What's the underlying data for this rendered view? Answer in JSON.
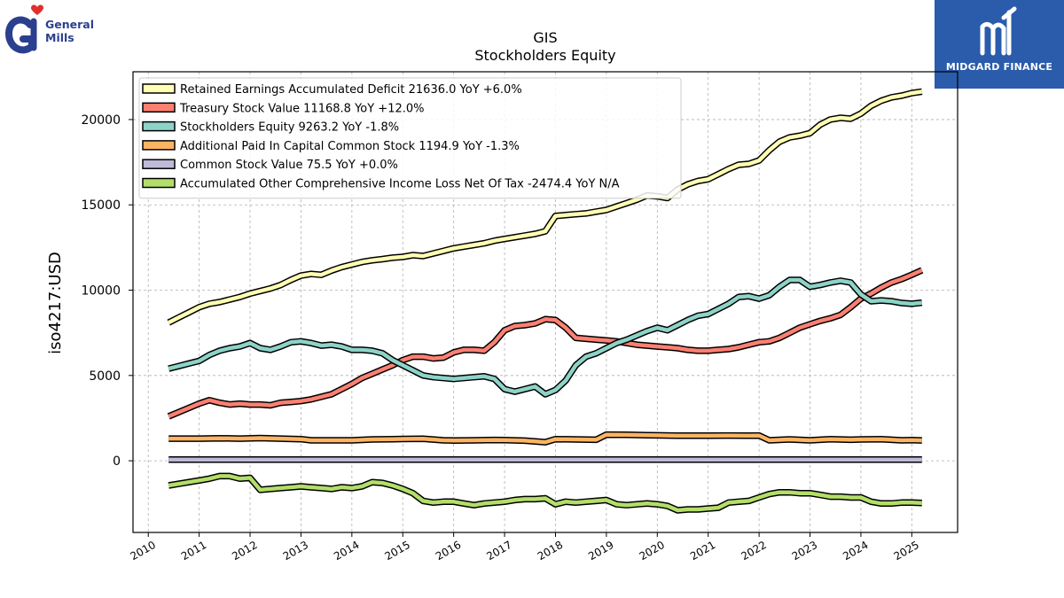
{
  "logos": {
    "company_line1": "General",
    "company_line2": "Mills",
    "partner": "MIDGARD FINANCE"
  },
  "chart_data": {
    "type": "line",
    "title": "GIS",
    "subtitle": "Stockholders  Equity",
    "xlabel": "",
    "ylabel": "iso4217:USD",
    "xlim": [
      2009.7,
      2025.9
    ],
    "ylim": [
      -4200,
      22800
    ],
    "grid": true,
    "legend_position": "top-left",
    "x_ticks": [
      "2010",
      "2011",
      "2012",
      "2013",
      "2014",
      "2015",
      "2016",
      "2017",
      "2018",
      "2019",
      "2020",
      "2021",
      "2022",
      "2023",
      "2024",
      "2025"
    ],
    "y_ticks": [
      0,
      5000,
      10000,
      15000,
      20000
    ],
    "series": [
      {
        "name": "Retained Earnings Accumulated Deficit",
        "legend": "Retained Earnings Accumulated Deficit  21636.0 YoY +6.0%",
        "color": "#ffffb3",
        "x": [
          2010.4,
          2010.6,
          2010.8,
          2011.0,
          2011.2,
          2011.4,
          2011.6,
          2011.8,
          2012.0,
          2012.2,
          2012.4,
          2012.6,
          2012.8,
          2013.0,
          2013.2,
          2013.4,
          2013.6,
          2013.8,
          2014.0,
          2014.2,
          2014.4,
          2014.6,
          2014.8,
          2015.0,
          2015.2,
          2015.4,
          2015.6,
          2015.8,
          2016.0,
          2016.2,
          2016.4,
          2016.6,
          2016.8,
          2017.0,
          2017.2,
          2017.4,
          2017.6,
          2017.8,
          2018.0,
          2018.2,
          2018.4,
          2018.6,
          2018.8,
          2019.0,
          2019.2,
          2019.4,
          2019.6,
          2019.8,
          2020.0,
          2020.2,
          2020.4,
          2020.6,
          2020.8,
          2021.0,
          2021.2,
          2021.4,
          2021.6,
          2021.8,
          2022.0,
          2022.2,
          2022.4,
          2022.6,
          2022.8,
          2023.0,
          2023.2,
          2023.4,
          2023.6,
          2023.8,
          2024.0,
          2024.2,
          2024.4,
          2024.6,
          2024.8,
          2025.0,
          2025.2
        ],
        "y": [
          8100,
          8400,
          8700,
          9000,
          9200,
          9300,
          9450,
          9600,
          9800,
          9950,
          10100,
          10300,
          10600,
          10850,
          10950,
          10900,
          11150,
          11350,
          11500,
          11650,
          11750,
          11820,
          11900,
          11950,
          12050,
          12000,
          12150,
          12300,
          12450,
          12550,
          12650,
          12750,
          12900,
          13000,
          13100,
          13200,
          13300,
          13450,
          14350,
          14400,
          14450,
          14500,
          14600,
          14700,
          14900,
          15100,
          15300,
          15550,
          15500,
          15400,
          15900,
          16200,
          16400,
          16500,
          16800,
          17100,
          17350,
          17400,
          17600,
          18200,
          18700,
          18950,
          19050,
          19200,
          19700,
          20000,
          20100,
          20050,
          20350,
          20800,
          21100,
          21300,
          21400,
          21550,
          21636
        ]
      },
      {
        "name": "Treasury Stock Value",
        "legend": "Treasury Stock Value  11168.8 YoY +12.0%",
        "color": "#fb8072",
        "x": [
          2010.4,
          2010.6,
          2010.8,
          2011.0,
          2011.2,
          2011.4,
          2011.6,
          2011.8,
          2012.0,
          2012.2,
          2012.4,
          2012.6,
          2012.8,
          2013.0,
          2013.2,
          2013.4,
          2013.6,
          2013.8,
          2014.0,
          2014.2,
          2014.4,
          2014.6,
          2014.8,
          2015.0,
          2015.2,
          2015.4,
          2015.6,
          2015.8,
          2016.0,
          2016.2,
          2016.4,
          2016.6,
          2016.8,
          2017.0,
          2017.2,
          2017.4,
          2017.6,
          2017.8,
          2018.0,
          2018.2,
          2018.4,
          2018.6,
          2018.8,
          2019.0,
          2019.2,
          2019.4,
          2019.6,
          2019.8,
          2020.0,
          2020.2,
          2020.4,
          2020.6,
          2020.8,
          2021.0,
          2021.2,
          2021.4,
          2021.6,
          2021.8,
          2022.0,
          2022.2,
          2022.4,
          2022.6,
          2022.8,
          2023.0,
          2023.2,
          2023.4,
          2023.6,
          2023.8,
          2024.0,
          2024.2,
          2024.4,
          2024.6,
          2024.8,
          2025.0,
          2025.2
        ],
        "y": [
          2600,
          2850,
          3100,
          3350,
          3550,
          3400,
          3300,
          3350,
          3300,
          3300,
          3250,
          3400,
          3450,
          3500,
          3600,
          3750,
          3900,
          4200,
          4500,
          4850,
          5100,
          5350,
          5600,
          5900,
          6100,
          6100,
          6000,
          6050,
          6350,
          6500,
          6500,
          6450,
          6950,
          7650,
          7900,
          7950,
          8050,
          8300,
          8250,
          7800,
          7200,
          7150,
          7100,
          7050,
          7000,
          6900,
          6800,
          6750,
          6700,
          6650,
          6600,
          6500,
          6450,
          6450,
          6500,
          6550,
          6650,
          6800,
          6950,
          7000,
          7200,
          7500,
          7800,
          8000,
          8200,
          8350,
          8550,
          9000,
          9500,
          9800,
          10150,
          10450,
          10650,
          10900,
          11168.8
        ]
      },
      {
        "name": "Stockholders Equity",
        "legend": "Stockholders Equity  9263.2 YoY -1.8%",
        "color": "#8dd3c7",
        "x": [
          2010.4,
          2010.6,
          2010.8,
          2011.0,
          2011.2,
          2011.4,
          2011.6,
          2011.8,
          2012.0,
          2012.2,
          2012.4,
          2012.6,
          2012.8,
          2013.0,
          2013.2,
          2013.4,
          2013.6,
          2013.8,
          2014.0,
          2014.2,
          2014.4,
          2014.6,
          2014.8,
          2015.0,
          2015.2,
          2015.4,
          2015.6,
          2015.8,
          2016.0,
          2016.2,
          2016.4,
          2016.6,
          2016.8,
          2017.0,
          2017.2,
          2017.4,
          2017.6,
          2017.8,
          2018.0,
          2018.2,
          2018.4,
          2018.6,
          2018.8,
          2019.0,
          2019.2,
          2019.4,
          2019.6,
          2019.8,
          2020.0,
          2020.2,
          2020.4,
          2020.6,
          2020.8,
          2021.0,
          2021.2,
          2021.4,
          2021.6,
          2021.8,
          2022.0,
          2022.2,
          2022.4,
          2022.6,
          2022.8,
          2023.0,
          2023.2,
          2023.4,
          2023.6,
          2023.8,
          2024.0,
          2024.2,
          2024.4,
          2024.6,
          2024.8,
          2025.0,
          2025.2
        ],
        "y": [
          5400,
          5550,
          5700,
          5850,
          6200,
          6450,
          6600,
          6700,
          6900,
          6600,
          6500,
          6700,
          6950,
          7000,
          6900,
          6750,
          6800,
          6700,
          6500,
          6500,
          6450,
          6300,
          5900,
          5600,
          5300,
          5000,
          4900,
          4850,
          4800,
          4850,
          4900,
          4950,
          4800,
          4200,
          4050,
          4200,
          4350,
          3900,
          4150,
          4700,
          5600,
          6100,
          6300,
          6600,
          6900,
          7100,
          7350,
          7600,
          7800,
          7650,
          7950,
          8250,
          8500,
          8600,
          8900,
          9200,
          9600,
          9650,
          9500,
          9700,
          10200,
          10600,
          10600,
          10200,
          10300,
          10450,
          10550,
          10450,
          9750,
          9350,
          9400,
          9350,
          9250,
          9200,
          9263.2
        ]
      },
      {
        "name": "Additional Paid In Capital Common Stock",
        "legend": "Additional Paid In Capital Common Stock  1194.9 YoY -1.3%",
        "color": "#fdb462",
        "x": [
          2010.4,
          2011.0,
          2011.4,
          2011.8,
          2012.2,
          2012.6,
          2013.0,
          2013.2,
          2013.6,
          2014.0,
          2014.4,
          2014.8,
          2015.0,
          2015.4,
          2015.8,
          2016.0,
          2016.4,
          2016.8,
          2017.0,
          2017.4,
          2017.8,
          2018.0,
          2018.4,
          2018.8,
          2019.0,
          2019.4,
          2019.8,
          2020.0,
          2020.4,
          2020.8,
          2021.0,
          2021.4,
          2021.8,
          2022.0,
          2022.2,
          2022.6,
          2023.0,
          2023.4,
          2023.8,
          2024.0,
          2024.4,
          2024.8,
          2025.0,
          2025.2
        ],
        "y": [
          1300,
          1300,
          1320,
          1300,
          1330,
          1300,
          1270,
          1200,
          1200,
          1200,
          1250,
          1270,
          1280,
          1290,
          1200,
          1190,
          1200,
          1220,
          1210,
          1180,
          1090,
          1270,
          1250,
          1230,
          1530,
          1520,
          1500,
          1490,
          1470,
          1470,
          1470,
          1480,
          1470,
          1480,
          1200,
          1250,
          1200,
          1260,
          1230,
          1250,
          1270,
          1200,
          1210,
          1194.9
        ]
      },
      {
        "name": "Common Stock Value",
        "legend": "Common Stock Value  75.5 YoY +0.0%",
        "color": "#bebada",
        "x": [
          2010.4,
          2025.2
        ],
        "y": [
          75.5,
          75.5
        ]
      },
      {
        "name": "Accumulated Other Comprehensive Income Loss Net Of Tax",
        "legend": "Accumulated Other Comprehensive Income Loss Net Of Tax  -2474.4 YoY N/A",
        "color": "#b3de69",
        "x": [
          2010.4,
          2010.6,
          2010.8,
          2011.0,
          2011.2,
          2011.4,
          2011.6,
          2011.8,
          2012.0,
          2012.2,
          2012.4,
          2012.6,
          2012.8,
          2013.0,
          2013.2,
          2013.4,
          2013.6,
          2013.8,
          2014.0,
          2014.2,
          2014.4,
          2014.6,
          2014.8,
          2015.0,
          2015.2,
          2015.4,
          2015.6,
          2015.8,
          2016.0,
          2016.2,
          2016.4,
          2016.6,
          2016.8,
          2017.0,
          2017.2,
          2017.4,
          2017.6,
          2017.8,
          2018.0,
          2018.2,
          2018.4,
          2018.6,
          2018.8,
          2019.0,
          2019.2,
          2019.4,
          2019.6,
          2019.8,
          2020.0,
          2020.2,
          2020.4,
          2020.6,
          2020.8,
          2021.0,
          2021.2,
          2021.4,
          2021.6,
          2021.8,
          2022.0,
          2022.2,
          2022.4,
          2022.6,
          2022.8,
          2023.0,
          2023.2,
          2023.4,
          2023.6,
          2023.8,
          2024.0,
          2024.2,
          2024.4,
          2024.6,
          2024.8,
          2025.0,
          2025.2
        ],
        "y": [
          -1450,
          -1350,
          -1250,
          -1150,
          -1050,
          -900,
          -900,
          -1050,
          -1000,
          -1700,
          -1650,
          -1600,
          -1550,
          -1500,
          -1550,
          -1600,
          -1650,
          -1550,
          -1600,
          -1500,
          -1250,
          -1300,
          -1450,
          -1650,
          -1900,
          -2350,
          -2450,
          -2400,
          -2400,
          -2500,
          -2600,
          -2500,
          -2450,
          -2400,
          -2300,
          -2250,
          -2250,
          -2200,
          -2550,
          -2400,
          -2450,
          -2400,
          -2350,
          -2300,
          -2550,
          -2600,
          -2550,
          -2500,
          -2550,
          -2650,
          -2900,
          -2850,
          -2850,
          -2800,
          -2750,
          -2450,
          -2400,
          -2350,
          -2150,
          -1950,
          -1850,
          -1850,
          -1900,
          -1900,
          -2000,
          -2100,
          -2100,
          -2150,
          -2150,
          -2400,
          -2500,
          -2500,
          -2450,
          -2450,
          -2474.4
        ]
      }
    ]
  }
}
